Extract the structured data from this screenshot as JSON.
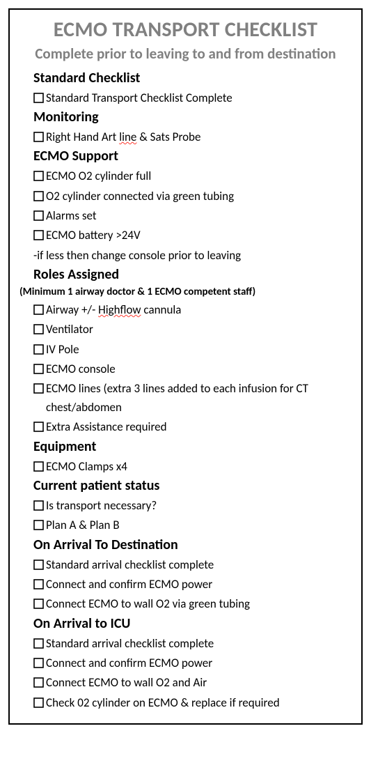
{
  "colors": {
    "heading_gray": "#808080",
    "text_black": "#000000",
    "border": "#000000",
    "spellcheck": "#ff3b30",
    "background": "#ffffff"
  },
  "title": "ECMO TRANSPORT CHECKLIST",
  "subtitle": "Complete prior to leaving to and from destination",
  "sections": {
    "standard": {
      "heading": "Standard Checklist",
      "items": [
        "Standard Transport Checklist Complete"
      ]
    },
    "monitoring": {
      "heading": "Monitoring",
      "items": [
        [
          {
            "t": "Right Hand Art ",
            "s": false
          },
          {
            "t": "line",
            "s": true
          },
          {
            "t": " & Sats Probe",
            "s": false
          }
        ]
      ]
    },
    "ecmo_support": {
      "heading": "ECMO Support",
      "items": [
        "ECMO O2 cylinder full",
        "O2 cylinder connected via green tubing",
        "Alarms set",
        "ECMO battery >24V"
      ],
      "note": "-if less then change console prior to leaving"
    },
    "roles": {
      "heading": "Roles Assigned",
      "subheading": "(Minimum 1 airway doctor  & 1 ECMO competent staff)",
      "items": [
        [
          {
            "t": "Airway +/- ",
            "s": false
          },
          {
            "t": "Highflow",
            "s": true
          },
          {
            "t": " cannula",
            "s": false
          }
        ],
        "Ventilator",
        "IV Pole",
        "ECMO console",
        "ECMO lines (extra 3 lines added to each infusion for CT chest/abdomen",
        "Extra Assistance required"
      ]
    },
    "equipment": {
      "heading": "Equipment",
      "items": [
        "ECMO Clamps x4"
      ]
    },
    "status": {
      "heading": "Current patient status",
      "items": [
        "Is transport necessary?",
        "Plan A & Plan B"
      ]
    },
    "arrival_dest": {
      "heading": "On Arrival To Destination",
      "items": [
        "Standard arrival checklist complete",
        "Connect and confirm ECMO power",
        "Connect ECMO to wall O2 via green tubing"
      ]
    },
    "arrival_icu": {
      "heading": "On Arrival to ICU",
      "items": [
        "Standard arrival checklist complete",
        "Connect and confirm ECMO power",
        "Connect ECMO to wall O2 and Air",
        "Check 02 cylinder on ECMO & replace if required"
      ]
    }
  },
  "section_order": [
    "standard",
    "monitoring",
    "ecmo_support",
    "roles",
    "equipment",
    "status",
    "arrival_dest",
    "arrival_icu"
  ]
}
